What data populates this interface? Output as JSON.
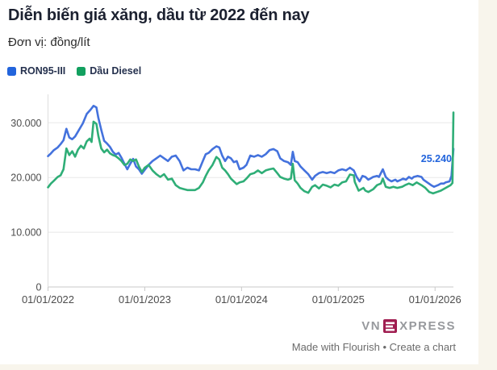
{
  "page": {
    "background_color": "#f8f5ec",
    "card_color": "#ffffff"
  },
  "footer": {
    "logo": {
      "vn": "VN",
      "e": "E",
      "xpress": "XPRESS",
      "box_color": "#a01e51",
      "text_color": "#97999d"
    },
    "attribution": "Made with Flourish • Create a chart"
  },
  "chart_data": {
    "type": "line",
    "title": "Diễn biến giá xăng, dầu từ 2022 đến nay",
    "subtitle": "Đơn vị: đồng/lít",
    "xlabel": "",
    "ylabel": "đồng/lít",
    "grid": "horizontal",
    "legend_position": "top-left",
    "xlim": [
      2022.0,
      2026.19
    ],
    "ylim": [
      0,
      35200
    ],
    "x_ticks": [
      {
        "label": "01/01/2022",
        "value": 2022.0
      },
      {
        "label": "01/01/2023",
        "value": 2023.0
      },
      {
        "label": "01/01/2024",
        "value": 2024.0
      },
      {
        "label": "01/01/2025",
        "value": 2025.0
      },
      {
        "label": "01/01/2026",
        "value": 2026.0
      }
    ],
    "y_ticks": [
      {
        "label": "0",
        "value": 0
      },
      {
        "label": "10.000",
        "value": 10000
      },
      {
        "label": "20.000",
        "value": 20000
      },
      {
        "label": "30.000",
        "value": 30000
      }
    ],
    "end_label": {
      "text": "25.240",
      "series": "RON95-III",
      "color": "#2264dc"
    },
    "series": [
      {
        "id": "ron95",
        "name": "RON95-III",
        "color": "#4472dd",
        "swatch_color": "#2264dc",
        "points": [
          [
            2022.0,
            23900
          ],
          [
            2022.03,
            24400
          ],
          [
            2022.06,
            25000
          ],
          [
            2022.1,
            25500
          ],
          [
            2022.13,
            26100
          ],
          [
            2022.16,
            26800
          ],
          [
            2022.19,
            28900
          ],
          [
            2022.22,
            27300
          ],
          [
            2022.25,
            27000
          ],
          [
            2022.28,
            27500
          ],
          [
            2022.31,
            28400
          ],
          [
            2022.36,
            29900
          ],
          [
            2022.4,
            31600
          ],
          [
            2022.44,
            32400
          ],
          [
            2022.47,
            33100
          ],
          [
            2022.5,
            32800
          ],
          [
            2022.52,
            30900
          ],
          [
            2022.55,
            28700
          ],
          [
            2022.58,
            26700
          ],
          [
            2022.61,
            26200
          ],
          [
            2022.64,
            25600
          ],
          [
            2022.67,
            24700
          ],
          [
            2022.7,
            24200
          ],
          [
            2022.73,
            24500
          ],
          [
            2022.76,
            23600
          ],
          [
            2022.79,
            22500
          ],
          [
            2022.82,
            21500
          ],
          [
            2022.85,
            22500
          ],
          [
            2022.88,
            23400
          ],
          [
            2022.91,
            22000
          ],
          [
            2022.94,
            21500
          ],
          [
            2022.97,
            20700
          ],
          [
            2023.0,
            21400
          ],
          [
            2023.04,
            22300
          ],
          [
            2023.08,
            23000
          ],
          [
            2023.12,
            23500
          ],
          [
            2023.16,
            24000
          ],
          [
            2023.2,
            23500
          ],
          [
            2023.24,
            23000
          ],
          [
            2023.28,
            23800
          ],
          [
            2023.32,
            24000
          ],
          [
            2023.36,
            23000
          ],
          [
            2023.4,
            21300
          ],
          [
            2023.44,
            21800
          ],
          [
            2023.48,
            21500
          ],
          [
            2023.52,
            21500
          ],
          [
            2023.56,
            21300
          ],
          [
            2023.6,
            23000
          ],
          [
            2023.63,
            24250
          ],
          [
            2023.66,
            24500
          ],
          [
            2023.7,
            25200
          ],
          [
            2023.74,
            25700
          ],
          [
            2023.77,
            25500
          ],
          [
            2023.8,
            24000
          ],
          [
            2023.83,
            23000
          ],
          [
            2023.86,
            23800
          ],
          [
            2023.89,
            23500
          ],
          [
            2023.92,
            22800
          ],
          [
            2023.95,
            23000
          ],
          [
            2023.98,
            21500
          ],
          [
            2024.02,
            21800
          ],
          [
            2024.05,
            22300
          ],
          [
            2024.09,
            24000
          ],
          [
            2024.13,
            23800
          ],
          [
            2024.17,
            24100
          ],
          [
            2024.21,
            23800
          ],
          [
            2024.25,
            24250
          ],
          [
            2024.29,
            25000
          ],
          [
            2024.33,
            25200
          ],
          [
            2024.37,
            24800
          ],
          [
            2024.4,
            23500
          ],
          [
            2024.44,
            23000
          ],
          [
            2024.48,
            22800
          ],
          [
            2024.51,
            22300
          ],
          [
            2024.53,
            24700
          ],
          [
            2024.55,
            23000
          ],
          [
            2024.58,
            22800
          ],
          [
            2024.61,
            22000
          ],
          [
            2024.65,
            21300
          ],
          [
            2024.69,
            20600
          ],
          [
            2024.73,
            19600
          ],
          [
            2024.76,
            20300
          ],
          [
            2024.8,
            20800
          ],
          [
            2024.84,
            21000
          ],
          [
            2024.88,
            20800
          ],
          [
            2024.92,
            21000
          ],
          [
            2024.96,
            20800
          ],
          [
            2025.0,
            21300
          ],
          [
            2025.04,
            21500
          ],
          [
            2025.08,
            21300
          ],
          [
            2025.12,
            21800
          ],
          [
            2025.16,
            21300
          ],
          [
            2025.19,
            20100
          ],
          [
            2025.22,
            19300
          ],
          [
            2025.25,
            20300
          ],
          [
            2025.28,
            20100
          ],
          [
            2025.31,
            19600
          ],
          [
            2025.33,
            19800
          ],
          [
            2025.36,
            20100
          ],
          [
            2025.4,
            20300
          ],
          [
            2025.42,
            20100
          ],
          [
            2025.46,
            21500
          ],
          [
            2025.49,
            20100
          ],
          [
            2025.52,
            19600
          ],
          [
            2025.55,
            19300
          ],
          [
            2025.59,
            19600
          ],
          [
            2025.61,
            19300
          ],
          [
            2025.65,
            19600
          ],
          [
            2025.67,
            19800
          ],
          [
            2025.7,
            19600
          ],
          [
            2025.73,
            20100
          ],
          [
            2025.76,
            19800
          ],
          [
            2025.78,
            20100
          ],
          [
            2025.82,
            20300
          ],
          [
            2025.86,
            20100
          ],
          [
            2025.88,
            19600
          ],
          [
            2025.92,
            19100
          ],
          [
            2025.96,
            18600
          ],
          [
            2025.99,
            18300
          ],
          [
            2026.03,
            18600
          ],
          [
            2026.06,
            18900
          ],
          [
            2026.09,
            18900
          ],
          [
            2026.11,
            19100
          ],
          [
            2026.15,
            19300
          ],
          [
            2026.17,
            20300
          ],
          [
            2026.19,
            25240
          ]
        ]
      },
      {
        "id": "diesel",
        "name": "Dầu Diesel",
        "color": "#2fae77",
        "swatch_color": "#12a05f",
        "points": [
          [
            2022.0,
            18200
          ],
          [
            2022.03,
            18900
          ],
          [
            2022.06,
            19400
          ],
          [
            2022.1,
            20100
          ],
          [
            2022.13,
            20400
          ],
          [
            2022.16,
            21500
          ],
          [
            2022.19,
            25300
          ],
          [
            2022.22,
            24100
          ],
          [
            2022.25,
            24800
          ],
          [
            2022.28,
            23800
          ],
          [
            2022.31,
            25100
          ],
          [
            2022.34,
            25800
          ],
          [
            2022.37,
            25300
          ],
          [
            2022.4,
            26600
          ],
          [
            2022.43,
            27100
          ],
          [
            2022.45,
            26500
          ],
          [
            2022.47,
            30200
          ],
          [
            2022.5,
            29800
          ],
          [
            2022.52,
            27600
          ],
          [
            2022.55,
            25300
          ],
          [
            2022.58,
            24600
          ],
          [
            2022.61,
            25100
          ],
          [
            2022.64,
            24400
          ],
          [
            2022.67,
            24100
          ],
          [
            2022.7,
            23900
          ],
          [
            2022.73,
            23500
          ],
          [
            2022.76,
            23000
          ],
          [
            2022.79,
            22300
          ],
          [
            2022.82,
            22500
          ],
          [
            2022.85,
            23300
          ],
          [
            2022.88,
            23000
          ],
          [
            2022.91,
            23300
          ],
          [
            2022.94,
            22000
          ],
          [
            2022.97,
            21000
          ],
          [
            2023.0,
            21800
          ],
          [
            2023.04,
            22300
          ],
          [
            2023.08,
            21300
          ],
          [
            2023.12,
            20600
          ],
          [
            2023.16,
            20100
          ],
          [
            2023.2,
            20600
          ],
          [
            2023.24,
            19600
          ],
          [
            2023.28,
            19800
          ],
          [
            2023.32,
            18600
          ],
          [
            2023.36,
            18100
          ],
          [
            2023.4,
            17900
          ],
          [
            2023.44,
            17700
          ],
          [
            2023.48,
            17700
          ],
          [
            2023.52,
            17700
          ],
          [
            2023.56,
            18100
          ],
          [
            2023.6,
            19100
          ],
          [
            2023.63,
            20300
          ],
          [
            2023.66,
            21300
          ],
          [
            2023.7,
            22300
          ],
          [
            2023.74,
            23750
          ],
          [
            2023.77,
            23300
          ],
          [
            2023.8,
            21800
          ],
          [
            2023.83,
            21300
          ],
          [
            2023.86,
            20600
          ],
          [
            2023.89,
            19800
          ],
          [
            2023.92,
            19300
          ],
          [
            2023.95,
            18800
          ],
          [
            2023.98,
            19100
          ],
          [
            2024.02,
            19300
          ],
          [
            2024.05,
            19800
          ],
          [
            2024.09,
            20600
          ],
          [
            2024.13,
            20800
          ],
          [
            2024.17,
            21300
          ],
          [
            2024.21,
            20800
          ],
          [
            2024.25,
            21300
          ],
          [
            2024.29,
            21500
          ],
          [
            2024.33,
            21650
          ],
          [
            2024.37,
            20800
          ],
          [
            2024.4,
            20100
          ],
          [
            2024.44,
            19800
          ],
          [
            2024.48,
            19600
          ],
          [
            2024.51,
            19800
          ],
          [
            2024.53,
            22500
          ],
          [
            2024.55,
            19500
          ],
          [
            2024.58,
            18900
          ],
          [
            2024.61,
            18100
          ],
          [
            2024.65,
            17500
          ],
          [
            2024.69,
            17200
          ],
          [
            2024.73,
            18300
          ],
          [
            2024.76,
            18600
          ],
          [
            2024.8,
            18000
          ],
          [
            2024.84,
            18700
          ],
          [
            2024.88,
            18500
          ],
          [
            2024.92,
            18200
          ],
          [
            2024.96,
            18700
          ],
          [
            2025.0,
            18500
          ],
          [
            2025.04,
            19100
          ],
          [
            2025.08,
            19300
          ],
          [
            2025.12,
            20550
          ],
          [
            2025.16,
            20400
          ],
          [
            2025.17,
            19200
          ],
          [
            2025.21,
            17600
          ],
          [
            2025.26,
            18100
          ],
          [
            2025.28,
            17600
          ],
          [
            2025.31,
            17350
          ],
          [
            2025.36,
            17850
          ],
          [
            2025.4,
            18600
          ],
          [
            2025.44,
            18900
          ],
          [
            2025.46,
            19800
          ],
          [
            2025.49,
            18300
          ],
          [
            2025.53,
            18100
          ],
          [
            2025.57,
            18300
          ],
          [
            2025.61,
            18100
          ],
          [
            2025.66,
            18300
          ],
          [
            2025.69,
            18600
          ],
          [
            2025.73,
            18900
          ],
          [
            2025.77,
            18600
          ],
          [
            2025.81,
            19100
          ],
          [
            2025.86,
            18600
          ],
          [
            2025.9,
            18100
          ],
          [
            2025.94,
            17350
          ],
          [
            2025.98,
            17100
          ],
          [
            2026.02,
            17350
          ],
          [
            2026.06,
            17600
          ],
          [
            2026.11,
            18100
          ],
          [
            2026.13,
            18300
          ],
          [
            2026.16,
            18600
          ],
          [
            2026.18,
            19000
          ],
          [
            2026.19,
            31870
          ]
        ]
      }
    ]
  }
}
